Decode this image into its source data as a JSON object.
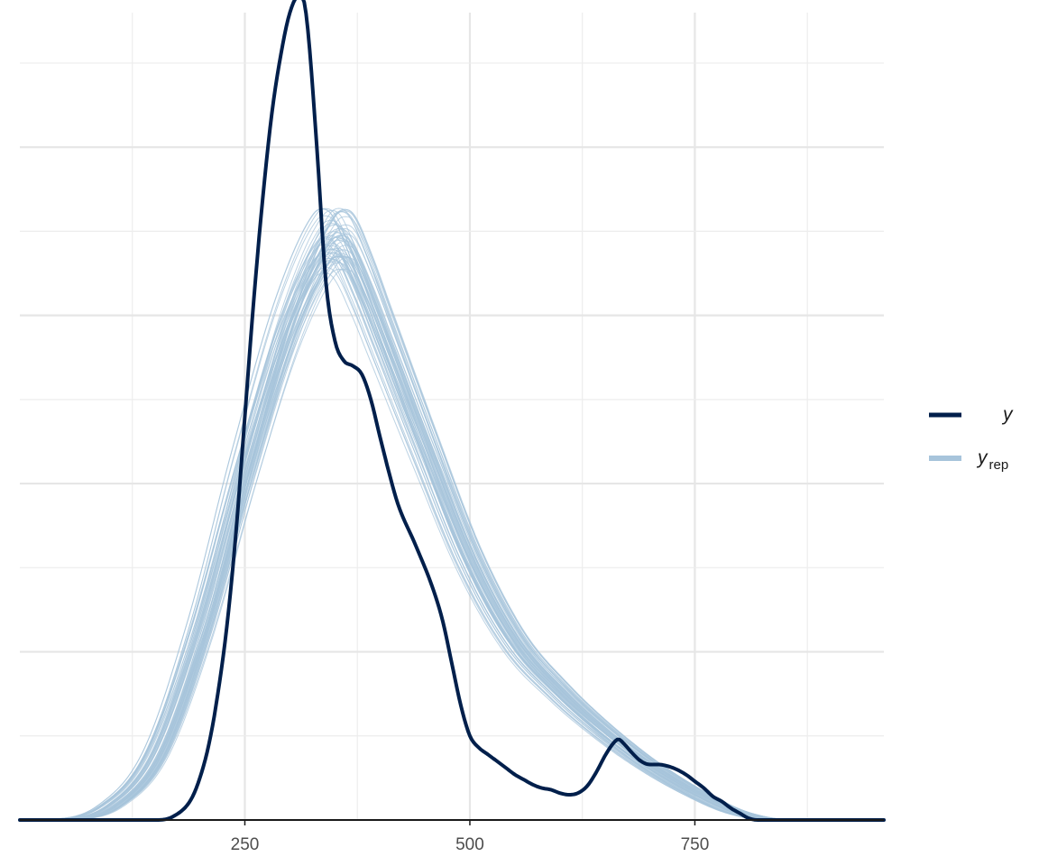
{
  "chart_data": {
    "type": "line",
    "title": "",
    "xlabel": "",
    "ylabel": "",
    "xlim": [
      0,
      960
    ],
    "ylim": [
      0,
      0.0048
    ],
    "x_ticks": [
      250,
      500,
      750
    ],
    "x_tick_labels": [
      "250",
      "500",
      "750"
    ],
    "y_tick_labels_shown": false,
    "grid": true,
    "legend_position": "right",
    "colors": {
      "y": "#011f4b",
      "yrep": "#a7c4db"
    },
    "legend": [
      {
        "key": "y",
        "label": "y",
        "subscript": ""
      },
      {
        "key": "yrep",
        "label": "y",
        "subscript": "rep"
      }
    ],
    "series": [
      {
        "name": "y",
        "role": "observed",
        "x": [
          0,
          150,
          170,
          190,
          200,
          210,
          220,
          230,
          240,
          250,
          260,
          270,
          280,
          290,
          300,
          310,
          315,
          320,
          330,
          340,
          350,
          360,
          370,
          380,
          390,
          400,
          410,
          420,
          440,
          460,
          470,
          480,
          490,
          500,
          510,
          520,
          530,
          540,
          550,
          560,
          570,
          580,
          590,
          600,
          610,
          620,
          630,
          640,
          650,
          660,
          665,
          670,
          680,
          690,
          700,
          710,
          720,
          730,
          740,
          750,
          760,
          770,
          780,
          790,
          800,
          810,
          820,
          830,
          840,
          860,
          960
        ],
        "y": [
          0,
          0,
          2e-05,
          0.00012,
          0.00025,
          0.00045,
          0.00075,
          0.00115,
          0.0017,
          0.0024,
          0.0031,
          0.0037,
          0.0042,
          0.00455,
          0.0048,
          0.0049,
          0.00488,
          0.0047,
          0.004,
          0.0032,
          0.00285,
          0.00273,
          0.0027,
          0.00265,
          0.0025,
          0.00228,
          0.00207,
          0.00188,
          0.00163,
          0.00136,
          0.00118,
          0.00093,
          0.00068,
          0.0005,
          0.00043,
          0.00039,
          0.00035,
          0.00031,
          0.00027,
          0.00024,
          0.00021,
          0.00019,
          0.00018,
          0.00016,
          0.00015,
          0.00016,
          0.0002,
          0.00028,
          0.00038,
          0.00046,
          0.00048,
          0.00046,
          0.0004,
          0.00035,
          0.00033,
          0.00033,
          0.00032,
          0.0003,
          0.00027,
          0.00023,
          0.00019,
          0.00014,
          0.00011,
          7e-05,
          4e-05,
          1e-05,
          0,
          0,
          0,
          0,
          0
        ]
      },
      {
        "name": "yrep",
        "role": "replicated",
        "x": [
          0,
          50,
          100,
          150,
          200,
          250,
          300,
          340,
          350,
          360,
          380,
          400,
          450,
          500,
          550,
          600,
          650,
          700,
          750,
          800,
          850,
          960
        ],
        "y": [
          0,
          5e-06,
          8e-05,
          0.00038,
          0.00112,
          0.0021,
          0.00298,
          0.00343,
          0.00346,
          0.00343,
          0.0032,
          0.00292,
          0.00222,
          0.00155,
          0.00106,
          0.00076,
          0.00052,
          0.00032,
          0.00016,
          4e-05,
          0.0,
          0
        ]
      }
    ]
  }
}
